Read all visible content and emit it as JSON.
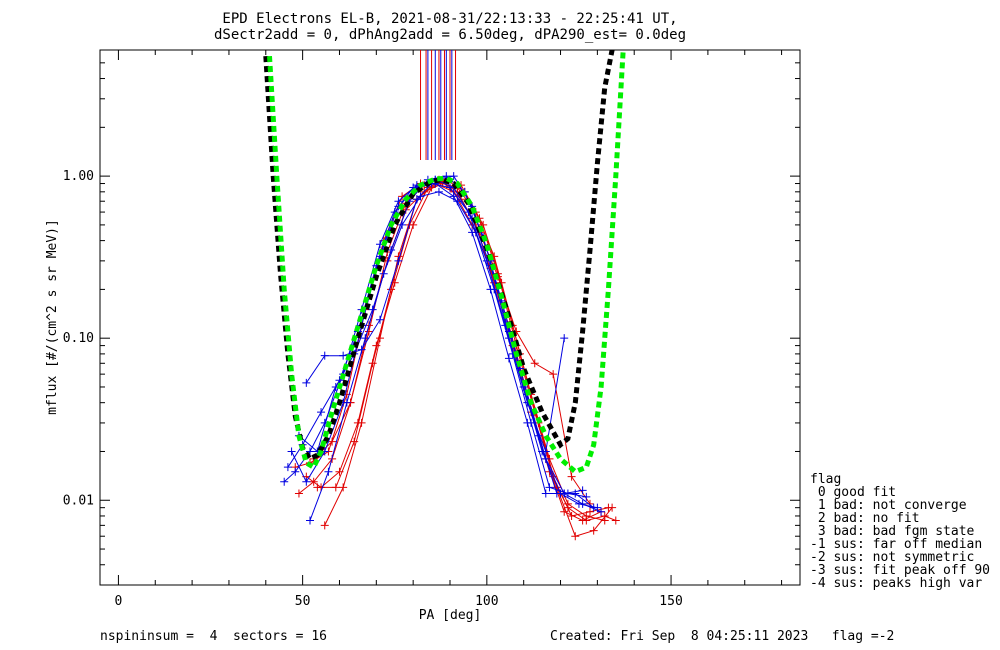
{
  "title_line1": "EPD Electrons EL-B, 2021-08-31/22:13:33 - 22:25:41 UT,",
  "title_line2": "dSectr2add = 0, dPhAng2add = 6.50deg, dPA290_est=   0.0deg",
  "footer": {
    "left": "nspininsum =  4  sectors = 16",
    "right": "Created: Fri Sep  8 04:25:11 2023   flag =-2"
  },
  "flag_legend": {
    "title": "flag",
    "entries": [
      " 0 good fit",
      " 1 bad: not converge",
      " 2 bad: no fit",
      " 3 bad: bad fgm state",
      "-1 sus: far off median",
      "-2 sus: not symmetric",
      "-3 sus: fit peak off 90",
      "-4 sus: peaks high var"
    ]
  },
  "colors": {
    "red": "#e00000",
    "blue": "#0000e0",
    "black": "#000000",
    "green": "#00ee00"
  },
  "chart_data": {
    "type": "line",
    "xlabel": "PA [deg]",
    "ylabel": "mflux [#/(cm^2 s sr MeV)]",
    "xlim": [
      -5,
      185
    ],
    "ylim": [
      0.003,
      6.0
    ],
    "yscale": "log",
    "xticks": [
      0,
      50,
      100,
      150
    ],
    "xtick_labels": [
      "0",
      "50",
      "100",
      "150"
    ],
    "yticks": [
      0.01,
      0.1,
      1.0
    ],
    "ytick_labels": [
      "0.01",
      "0.10",
      "1.00"
    ],
    "vertical_lines": {
      "red": [
        82,
        83.5,
        85,
        87,
        88.5,
        90,
        91.5
      ],
      "blue": [
        84,
        86,
        87.5,
        89,
        90.5
      ]
    },
    "series": [
      {
        "color": "red",
        "marker": "plus",
        "x": [
          51,
          55,
          60,
          65,
          70,
          75,
          80,
          85,
          89,
          93,
          98,
          103,
          108,
          113,
          118,
          123,
          128,
          133
        ],
        "y": [
          0.014,
          0.012,
          0.015,
          0.03,
          0.09,
          0.22,
          0.5,
          0.85,
          0.95,
          0.88,
          0.55,
          0.25,
          0.09,
          0.035,
          0.014,
          0.008,
          0.0085,
          0.009
        ]
      },
      {
        "color": "red",
        "marker": "plus",
        "x": [
          49,
          53,
          58,
          63,
          68,
          73,
          78,
          83,
          88,
          92,
          97,
          102,
          107,
          112,
          117,
          122,
          127,
          132
        ],
        "y": [
          0.011,
          0.013,
          0.018,
          0.04,
          0.12,
          0.3,
          0.62,
          0.8,
          0.9,
          0.85,
          0.6,
          0.32,
          0.12,
          0.045,
          0.018,
          0.0095,
          0.008,
          0.0075
        ]
      },
      {
        "color": "red",
        "marker": "plus",
        "x": [
          54,
          59,
          64,
          69,
          74,
          79,
          84,
          89,
          94,
          99,
          104,
          109,
          114,
          119,
          124,
          129,
          134
        ],
        "y": [
          0.012,
          0.012,
          0.023,
          0.07,
          0.2,
          0.5,
          0.85,
          0.95,
          0.8,
          0.5,
          0.22,
          0.08,
          0.03,
          0.012,
          0.006,
          0.0065,
          0.009
        ]
      },
      {
        "color": "red",
        "marker": "plus",
        "x": [
          56,
          61,
          66,
          71,
          76,
          81,
          86,
          91,
          96,
          101,
          106,
          111,
          116,
          121,
          126,
          131
        ],
        "y": [
          0.007,
          0.012,
          0.03,
          0.1,
          0.32,
          0.72,
          0.9,
          0.8,
          0.5,
          0.27,
          0.12,
          0.045,
          0.018,
          0.0085,
          0.0075,
          0.0085
        ]
      },
      {
        "color": "red",
        "marker": "plus",
        "x": [
          48,
          52,
          57,
          62,
          67,
          72,
          77,
          82,
          87,
          92,
          97,
          102,
          107,
          112,
          117,
          122,
          127,
          132,
          135
        ],
        "y": [
          0.016,
          0.017,
          0.02,
          0.045,
          0.15,
          0.4,
          0.75,
          0.9,
          0.95,
          0.8,
          0.5,
          0.22,
          0.09,
          0.035,
          0.015,
          0.009,
          0.0075,
          0.008,
          0.0075
        ]
      },
      {
        "color": "red",
        "marker": "plus",
        "x": [
          53,
          58,
          63,
          68,
          73,
          78,
          83,
          88,
          93,
          98,
          103,
          108,
          113,
          118,
          123,
          128
        ],
        "y": [
          0.018,
          0.023,
          0.04,
          0.11,
          0.34,
          0.68,
          0.88,
          0.92,
          0.72,
          0.45,
          0.24,
          0.11,
          0.07,
          0.06,
          0.014,
          0.0095
        ]
      },
      {
        "color": "blue",
        "marker": "plus",
        "x": [
          45,
          48,
          52,
          56,
          61,
          66,
          71,
          76,
          81,
          86,
          91,
          96,
          101,
          106,
          111,
          116,
          121,
          126,
          131
        ],
        "y": [
          0.013,
          0.015,
          0.02,
          0.03,
          0.06,
          0.15,
          0.38,
          0.7,
          0.88,
          0.95,
          0.85,
          0.55,
          0.28,
          0.11,
          0.045,
          0.018,
          0.011,
          0.0095,
          0.0085
        ]
      },
      {
        "color": "blue",
        "marker": "plus",
        "x": [
          46,
          50,
          55,
          60,
          65,
          70,
          75,
          80,
          85,
          90,
          95,
          100,
          105,
          110,
          115,
          120,
          125,
          130
        ],
        "y": [
          0.016,
          0.022,
          0.035,
          0.055,
          0.11,
          0.28,
          0.6,
          0.85,
          0.9,
          0.85,
          0.6,
          0.3,
          0.12,
          0.05,
          0.02,
          0.011,
          0.0095,
          0.009
        ]
      },
      {
        "color": "blue",
        "marker": "plus",
        "x": [
          47,
          51,
          56,
          61,
          66,
          71,
          76,
          81,
          86,
          91,
          96,
          101,
          106,
          111,
          116,
          121,
          126
        ],
        "y": [
          0.02,
          0.013,
          0.02,
          0.04,
          0.12,
          0.32,
          0.65,
          0.85,
          0.9,
          0.75,
          0.45,
          0.2,
          0.075,
          0.03,
          0.011,
          0.011,
          0.0115
        ]
      },
      {
        "color": "blue",
        "marker": "plus",
        "x": [
          52,
          57,
          62,
          67,
          72,
          77,
          82,
          87,
          92,
          97,
          102,
          107,
          112,
          117,
          122,
          127
        ],
        "y": [
          0.0075,
          0.015,
          0.04,
          0.1,
          0.25,
          0.5,
          0.75,
          0.8,
          0.7,
          0.45,
          0.2,
          0.08,
          0.03,
          0.012,
          0.011,
          0.0105
        ]
      },
      {
        "color": "blue",
        "marker": "plus",
        "x": [
          49,
          54,
          59,
          64,
          69,
          74,
          79,
          84,
          89,
          94,
          99,
          104,
          109,
          114,
          119,
          124,
          129
        ],
        "y": [
          0.025,
          0.02,
          0.05,
          0.08,
          0.15,
          0.35,
          0.7,
          0.95,
          1.0,
          0.8,
          0.42,
          0.17,
          0.065,
          0.025,
          0.011,
          0.011,
          0.009
        ]
      },
      {
        "color": "blue",
        "marker": "plus",
        "x": [
          51,
          56,
          61,
          66,
          71,
          76,
          81,
          86,
          91,
          96,
          101,
          106,
          111,
          116,
          121
        ],
        "y": [
          0.053,
          0.078,
          0.078,
          0.085,
          0.13,
          0.3,
          0.72,
          0.95,
          1.0,
          0.65,
          0.3,
          0.1,
          0.04,
          0.02,
          0.1
        ]
      },
      {
        "color": "black",
        "style": "dashed-thick",
        "x": [
          40,
          42,
          44,
          46,
          48,
          50,
          52,
          54,
          57,
          60,
          65,
          70,
          75,
          80,
          85,
          88,
          91,
          95,
          100,
          105,
          110,
          115,
          120,
          122,
          124,
          126,
          128,
          130,
          132,
          134
        ],
        "y": [
          5.5,
          1.0,
          0.25,
          0.08,
          0.033,
          0.021,
          0.018,
          0.019,
          0.025,
          0.04,
          0.1,
          0.24,
          0.5,
          0.78,
          0.93,
          0.95,
          0.9,
          0.68,
          0.36,
          0.16,
          0.065,
          0.035,
          0.022,
          0.024,
          0.04,
          0.11,
          0.35,
          1.2,
          3.5,
          6.0
        ]
      },
      {
        "color": "green",
        "style": "dashed-thick",
        "x": [
          41,
          43,
          45,
          47,
          49,
          51,
          53,
          55,
          58,
          62,
          66,
          70,
          74,
          78,
          82,
          86,
          89,
          92,
          96,
          100,
          104,
          108,
          112,
          116,
          120,
          124,
          127,
          129,
          131,
          133,
          135,
          137
        ],
        "y": [
          5.5,
          1.0,
          0.2,
          0.06,
          0.025,
          0.017,
          0.016,
          0.02,
          0.035,
          0.07,
          0.14,
          0.28,
          0.5,
          0.72,
          0.88,
          0.96,
          0.97,
          0.9,
          0.65,
          0.38,
          0.18,
          0.08,
          0.04,
          0.025,
          0.018,
          0.015,
          0.016,
          0.022,
          0.05,
          0.2,
          1.0,
          6.0
        ]
      }
    ]
  }
}
